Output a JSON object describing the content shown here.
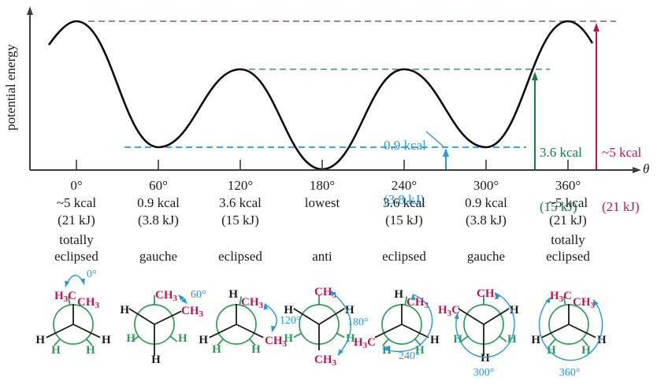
{
  "colors": {
    "crimson": "#c11552",
    "mauve_dash": "#b37d92",
    "green": "#167c46",
    "green_dash": "#7ea795",
    "struct_green": "#2e9b57",
    "blue": "#2697d8",
    "blue_dash": "#41a5dc",
    "ink": "#1c1c1c",
    "axis": "#3c3c3c"
  },
  "chart": {
    "y_axis_label": "potential energy",
    "x_axis_label": "θ",
    "annotations": {
      "gauche": {
        "line1": "0.9 kcal",
        "line2": "(3.8 kJ)"
      },
      "eclipsed": {
        "line1": "3.6 kcal",
        "line2": "(15 kJ)"
      },
      "totally_eclipsed": {
        "line1": "~5 kcal",
        "line2": "(21 kJ)"
      }
    }
  },
  "chart_data": {
    "type": "line",
    "title": "",
    "xlabel": "θ",
    "ylabel": "potential energy",
    "x": [
      0,
      60,
      120,
      180,
      240,
      300,
      360
    ],
    "x_tick_labels": [
      "0°",
      "60°",
      "120°",
      "180°",
      "240°",
      "300°",
      "360°"
    ],
    "series": [
      {
        "name": "potential energy",
        "values_kcal": [
          5,
          0.9,
          3.6,
          0,
          3.6,
          0.9,
          5
        ]
      }
    ],
    "reference_levels": [
      {
        "label": "~5 kcal (21 kJ)",
        "kcal": 5,
        "color": "crimson",
        "style": "dashed"
      },
      {
        "label": "3.6 kcal (15 kJ)",
        "kcal": 3.6,
        "color": "green",
        "style": "dashed"
      },
      {
        "label": "0.9 kcal (3.8 kJ)",
        "kcal": 0.9,
        "color": "blue",
        "style": "dashed"
      }
    ],
    "ylim_kcal": [
      0,
      5.5
    ],
    "grid": false,
    "legend": false
  },
  "axis_columns": [
    {
      "angle": "0°",
      "kcal": "~5 kcal",
      "kj": "(21 kJ)",
      "conformation": "totally eclipsed"
    },
    {
      "angle": "60°",
      "kcal": "0.9 kcal",
      "kj": "(3.8 kJ)",
      "conformation": "gauche"
    },
    {
      "angle": "120°",
      "kcal": "3.6 kcal",
      "kj": "(15 kJ)",
      "conformation": "eclipsed"
    },
    {
      "angle": "180°",
      "kcal": "lowest",
      "kj": "",
      "conformation": "anti"
    },
    {
      "angle": "240°",
      "kcal": "3.6 kcal",
      "kj": "(15 kJ)",
      "conformation": "eclipsed"
    },
    {
      "angle": "300°",
      "kcal": "0.9 kcal",
      "kj": "(3.8 kJ)",
      "conformation": "gauche"
    },
    {
      "angle": "360°",
      "kcal": "~5 kcal",
      "kj": "(21 kJ)",
      "conformation": "totally eclipsed"
    }
  ],
  "newman": [
    {
      "rotation": "0°",
      "conformation": "totally eclipsed",
      "labels": {
        "front_top": {
          "text": "CH3",
          "color": "crimson"
        },
        "back_top": {
          "text": "H3C",
          "color": "crimson"
        },
        "front_lower_left": {
          "text": "H",
          "color": "black"
        },
        "front_lower_right": {
          "text": "H",
          "color": "black"
        },
        "back_lower_left": {
          "text": "H",
          "color": "green"
        },
        "back_lower_right": {
          "text": "H",
          "color": "green"
        }
      }
    },
    {
      "rotation": "60°",
      "conformation": "gauche",
      "labels": {
        "back_top": {
          "text": "CH3",
          "color": "crimson"
        },
        "front_upper_left": {
          "text": "H",
          "color": "black"
        },
        "front_right": {
          "text": "CH3",
          "color": "crimson"
        },
        "front_bottom": {
          "text": "H",
          "color": "black"
        },
        "back_lower_left": {
          "text": "H",
          "color": "green"
        },
        "back_lower_right": {
          "text": "H",
          "color": "green"
        }
      }
    },
    {
      "rotation": "120°",
      "conformation": "eclipsed",
      "labels": {
        "front_top": {
          "text": "H",
          "color": "black"
        },
        "back_top": {
          "text": "CH3",
          "color": "crimson"
        },
        "front_lower_left": {
          "text": "H",
          "color": "black"
        },
        "front_lower_right": {
          "text": "CH3",
          "color": "crimson"
        },
        "back_lower_left": {
          "text": "H",
          "color": "green"
        },
        "back_lower_right": {
          "text": "H",
          "color": "green"
        }
      }
    },
    {
      "rotation": "180°",
      "conformation": "anti",
      "labels": {
        "back_top": {
          "text": "CH3",
          "color": "crimson"
        },
        "front_upper_left": {
          "text": "H",
          "color": "black"
        },
        "front_upper_right": {
          "text": "H",
          "color": "black"
        },
        "front_bottom": {
          "text": "CH3",
          "color": "crimson"
        },
        "back_lower_left": {
          "text": "H",
          "color": "green"
        },
        "back_lower_right": {
          "text": "H",
          "color": "green"
        }
      }
    },
    {
      "rotation": "240°",
      "conformation": "eclipsed",
      "labels": {
        "front_top": {
          "text": "H",
          "color": "black"
        },
        "back_top": {
          "text": "CH3",
          "color": "crimson"
        },
        "front_lower_left": {
          "text": "H3C",
          "color": "crimson"
        },
        "front_lower_right": {
          "text": "H",
          "color": "black"
        },
        "back_lower_left": {
          "text": "H",
          "color": "green"
        },
        "back_lower_right": {
          "text": "H",
          "color": "green"
        }
      }
    },
    {
      "rotation": "300°",
      "conformation": "gauche",
      "labels": {
        "back_top": {
          "text": "CH3",
          "color": "crimson"
        },
        "front_upper_left": {
          "text": "H3C",
          "color": "crimson"
        },
        "front_upper_right": {
          "text": "H",
          "color": "black"
        },
        "front_bottom": {
          "text": "H",
          "color": "black"
        },
        "back_lower_left": {
          "text": "H",
          "color": "green"
        },
        "back_lower_right": {
          "text": "H",
          "color": "green"
        }
      }
    },
    {
      "rotation": "360°",
      "conformation": "totally eclipsed",
      "labels": {
        "front_top": {
          "text": "CH3",
          "color": "crimson"
        },
        "back_top": {
          "text": "H3C",
          "color": "crimson"
        },
        "front_lower_left": {
          "text": "H",
          "color": "black"
        },
        "front_lower_right": {
          "text": "H",
          "color": "black"
        },
        "back_lower_left": {
          "text": "H",
          "color": "green"
        },
        "back_lower_right": {
          "text": "H",
          "color": "green"
        }
      }
    }
  ]
}
